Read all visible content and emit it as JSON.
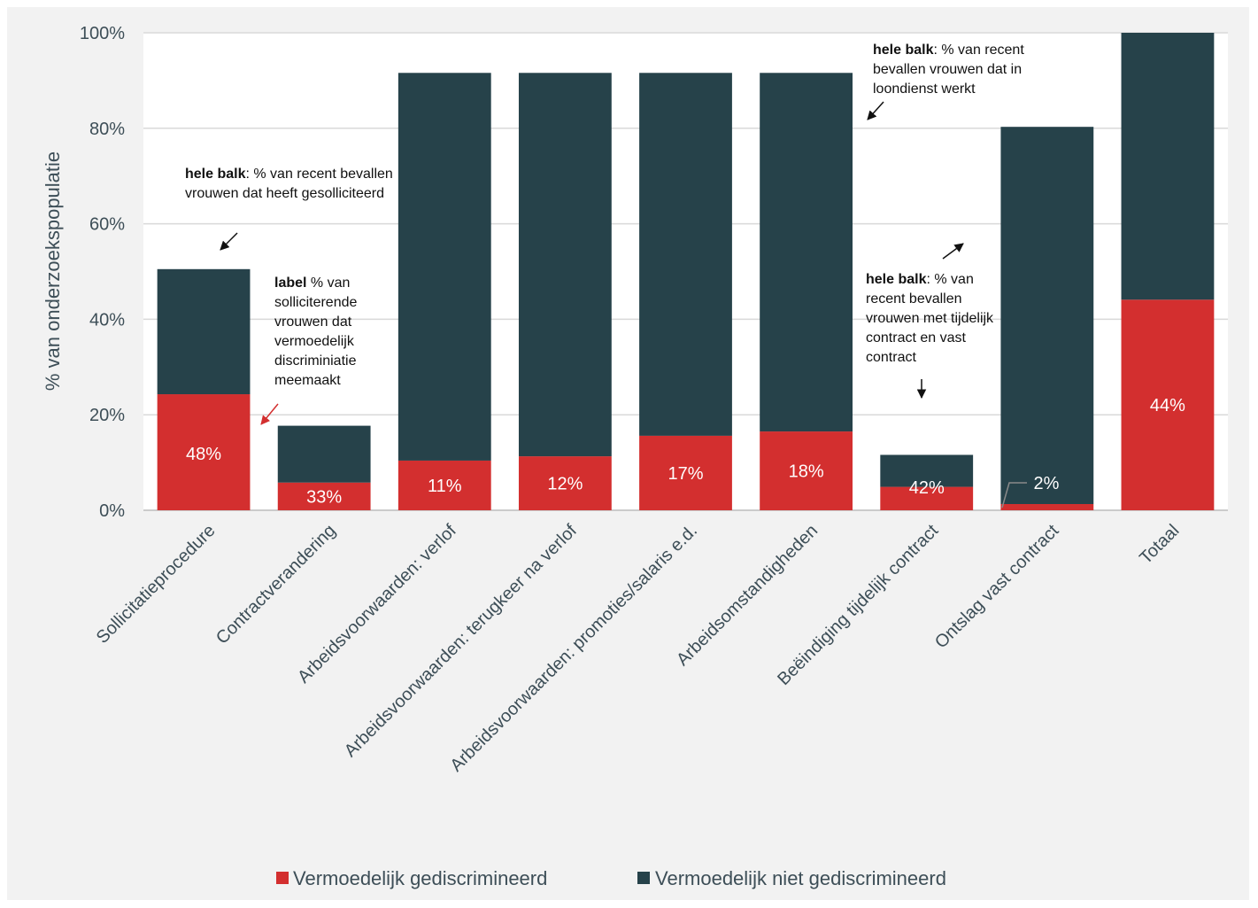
{
  "chart_data": {
    "type": "bar",
    "stacked": true,
    "ylabel": "% van onderzoekspopulatie",
    "ylim": [
      0,
      100
    ],
    "yticks": [
      "0%",
      "20%",
      "40%",
      "60%",
      "80%",
      "100%"
    ],
    "categories": [
      "Sollicitatieprocedure",
      "Contractverandering",
      "Arbeidsvoorwaarden: verlof",
      "Arbeidsvoorwaarden: terugkeer na verlof",
      "Arbeidsvoorwaarden: promoties/salaris e.d.",
      "Arbeidsomstandigheden",
      "Beëindiging tijdelijk contract",
      "Ontslag vast contract",
      "Totaal"
    ],
    "series": [
      {
        "name": "Vermoedelijk gediscrimineerd",
        "color": "#d32f2f",
        "values": [
          24.3,
          5.8,
          10.4,
          11.3,
          15.6,
          16.5,
          4.9,
          1.3,
          44.1
        ]
      },
      {
        "name": "Vermoedelijk niet gediscrimineerd",
        "color": "#26424a",
        "values": [
          26.2,
          11.9,
          81.2,
          80.3,
          76.0,
          75.1,
          6.7,
          79.0,
          55.9
        ]
      }
    ],
    "data_labels": [
      "48%",
      "33%",
      "11%",
      "12%",
      "17%",
      "18%",
      "42%",
      "2%",
      "44%"
    ],
    "grid": true,
    "legend_position": "bottom"
  },
  "annotations": {
    "a1": {
      "bold": "hele balk",
      "text": ": % van recent bevallen vrouwen dat heeft gesolliciteerd"
    },
    "a2": {
      "bold": "label",
      "text": " % van solliciterende vrouwen dat vermoedelijk discriminiatie meemaakt"
    },
    "a3": {
      "bold": "hele balk",
      "text": ": % van recent bevallen vrouwen dat in loondienst werkt"
    },
    "a4": {
      "bold": "hele balk",
      "text": ": % van recent bevallen vrouwen met tijdelijk contract en vast contract"
    }
  }
}
